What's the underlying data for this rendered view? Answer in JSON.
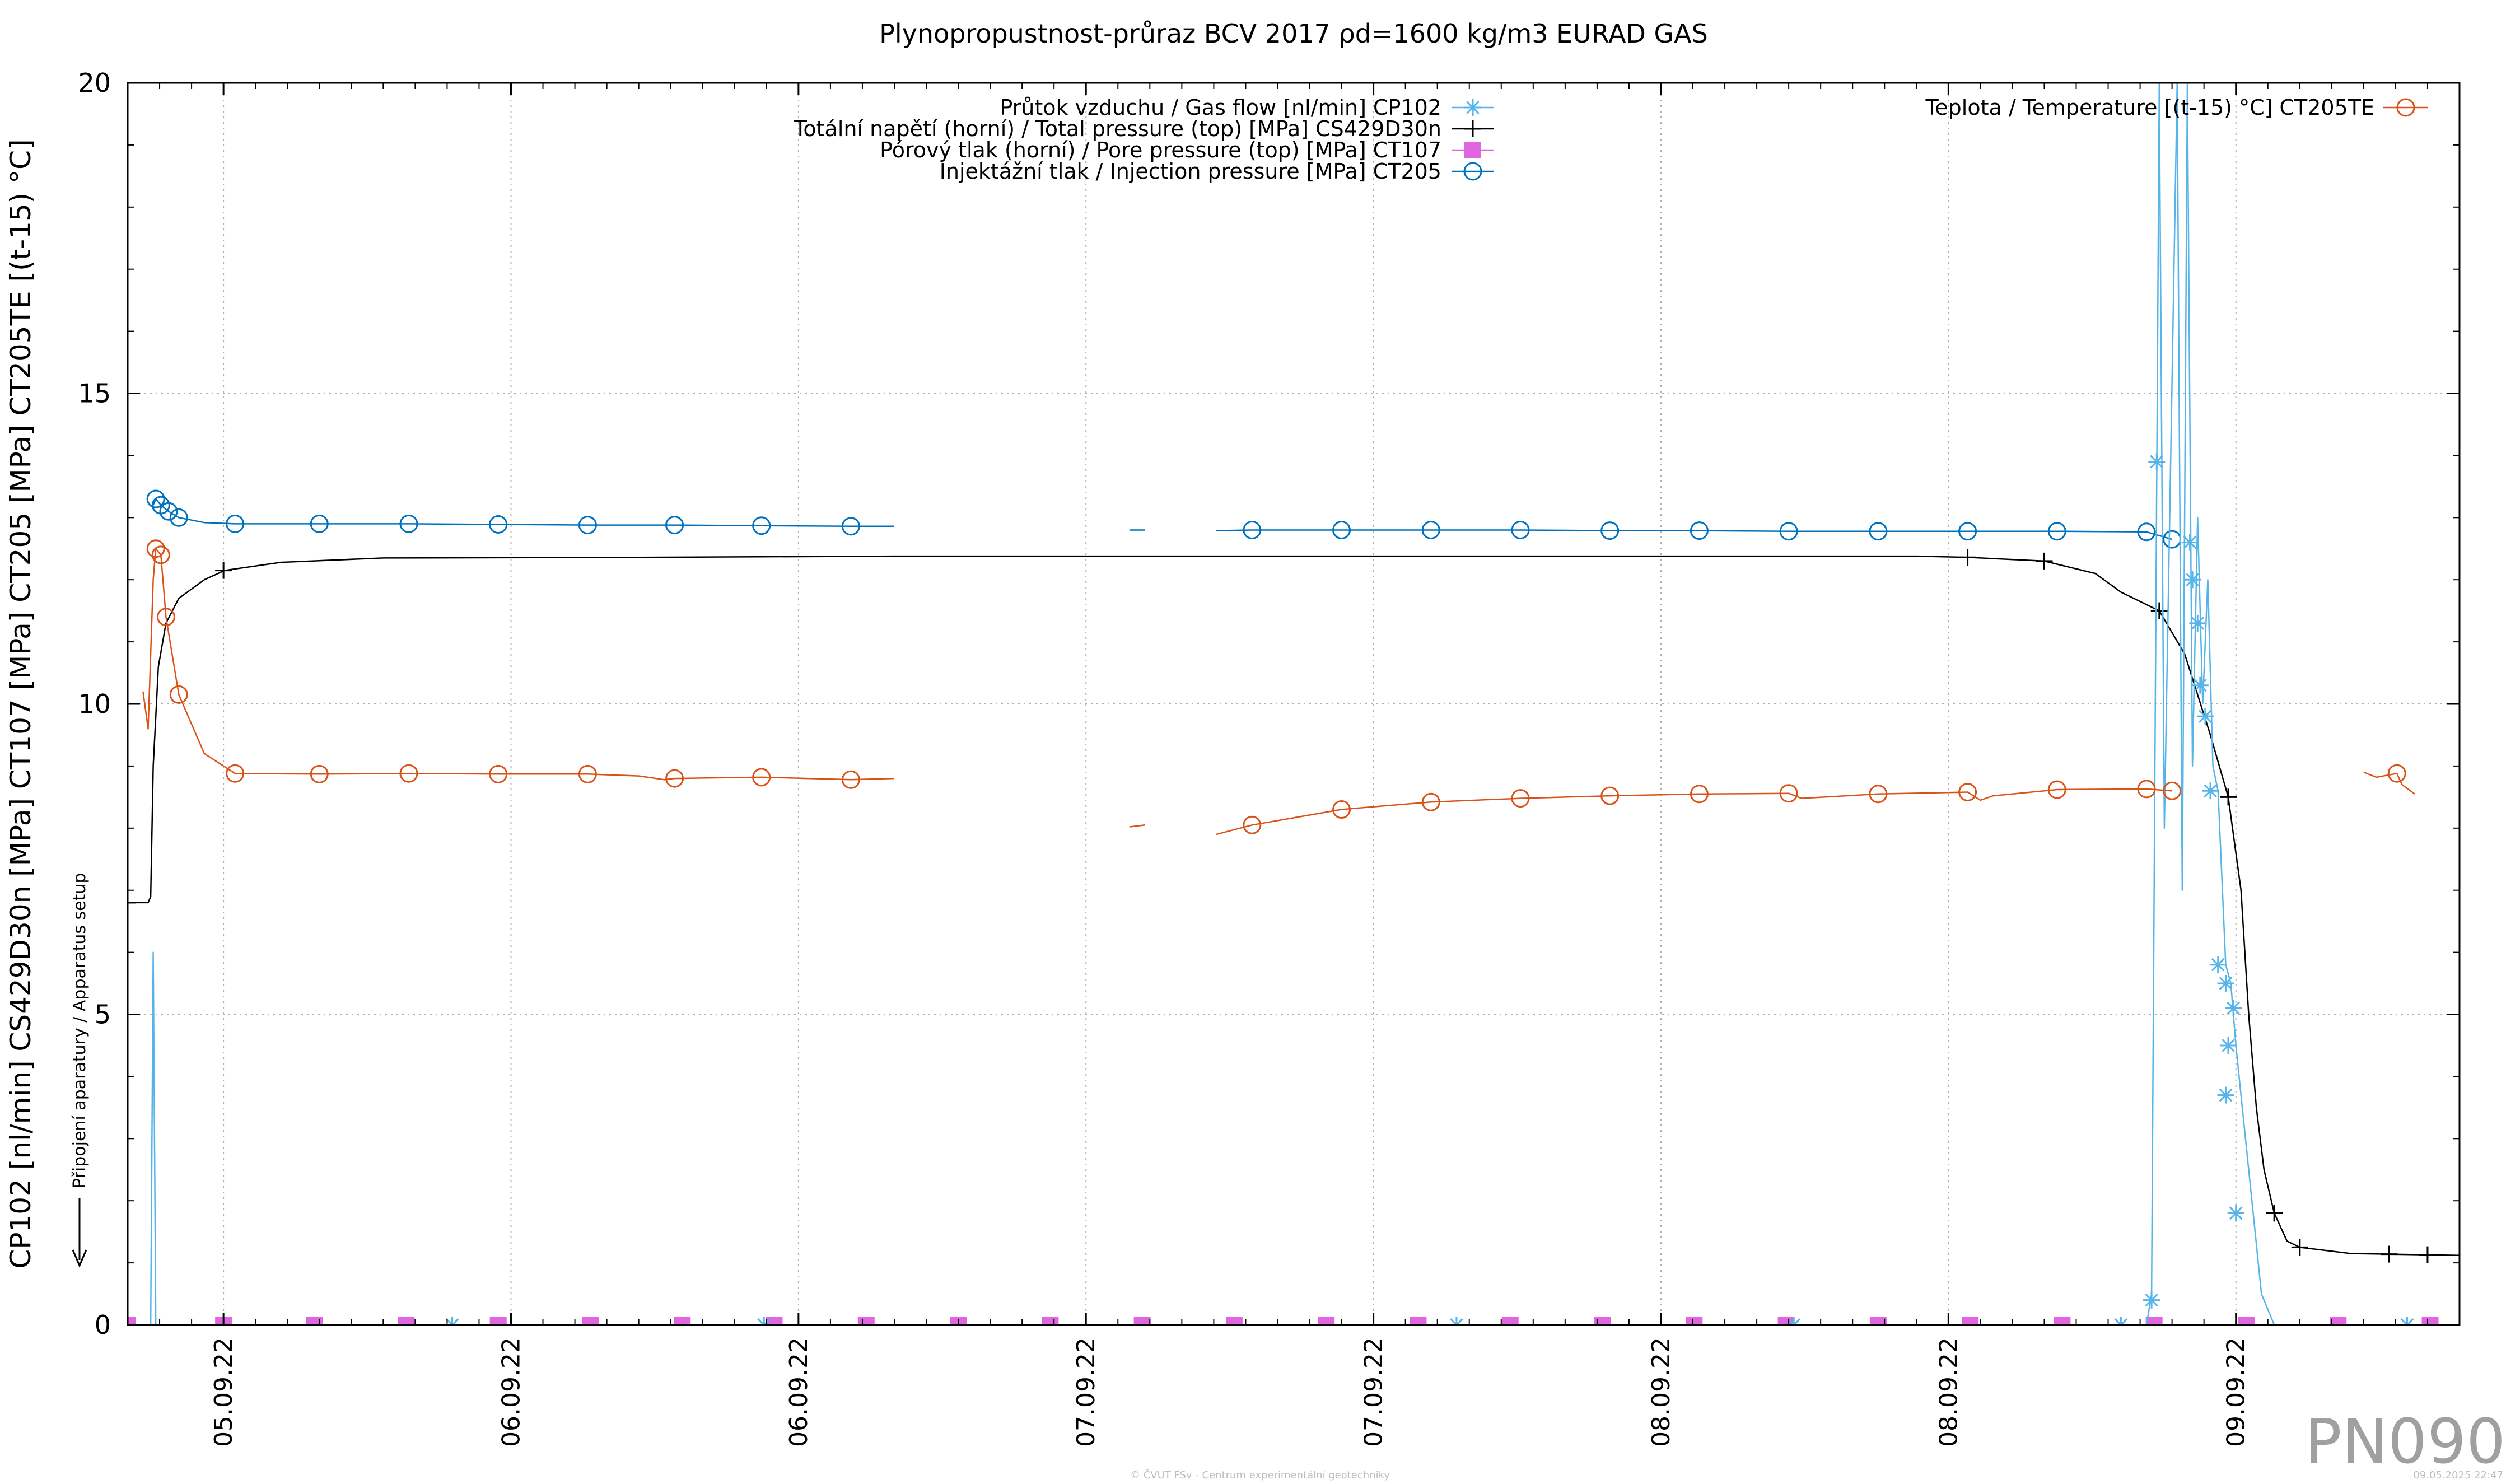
{
  "chart_data": {
    "type": "line",
    "title": "Plynopropustnost-průraz BCV 2017 ρd=1600 kg/m3 EURAD GAS",
    "ylabel": "CP102 [nl/min] CS429D30n [MPa] CT107 [MPa] CT205 [MPa] CT205TE [(t-15) °C]",
    "ylim": [
      0,
      20
    ],
    "y_ticks": [
      "0",
      "5",
      "10",
      "15",
      "20"
    ],
    "xlim": [
      0,
      9.125
    ],
    "x_unit": "days from 04.09.22 12:00",
    "x_ticks": [
      "05.09.22",
      "06.09.22",
      "06.09.22",
      "07.09.22",
      "07.09.22",
      "08.09.22",
      "08.09.22",
      "09.09.22"
    ],
    "x_tick_positions": [
      0.375,
      1.5,
      2.625,
      3.75,
      4.875,
      6.0,
      7.125,
      8.25
    ],
    "grid": true,
    "annotation": "Připojení aparatury / Apparatus setup",
    "watermark": "PN090",
    "footer_left": "© ČVUT FSv - Centrum experimentální geotechniky",
    "footer_right": "09.05.2025 22:47",
    "legend_left": [
      {
        "label": "Průtok vzduchu / Gas flow [nl/min] CP102",
        "color": "#56b4e9",
        "marker": "star"
      },
      {
        "label": "Totální napětí (horní) / Total pressure (top) [MPa] CS429D30n",
        "color": "#000000",
        "marker": "plus"
      },
      {
        "label": "Pórový tlak (horní) / Pore pressure (top) [MPa] CT107",
        "color": "#e066e0",
        "marker": "square"
      },
      {
        "label": "Injektážní tlak / Injection pressure [MPa] CT205",
        "color": "#0072bd",
        "marker": "circle"
      }
    ],
    "legend_right": [
      {
        "label": "Teplota / Temperature [(t-15) °C] CT205TE",
        "color": "#d95319",
        "marker": "circle"
      }
    ],
    "series": [
      {
        "name": "Injektážní tlak / Injection pressure [MPa] CT205",
        "color": "#0072bd",
        "marker": "circle",
        "segments": [
          [
            [
              0.1,
              13.2
            ],
            [
              0.11,
              13.3
            ],
            [
              0.13,
              13.2
            ],
            [
              0.16,
              13.1
            ],
            [
              0.2,
              13.0
            ],
            [
              0.3,
              12.92
            ],
            [
              0.42,
              12.9
            ],
            [
              0.75,
              12.9
            ],
            [
              1.1,
              12.9
            ],
            [
              1.45,
              12.89
            ],
            [
              1.8,
              12.88
            ],
            [
              2.14,
              12.88
            ],
            [
              2.48,
              12.87
            ],
            [
              2.83,
              12.86
            ],
            [
              3.0,
              12.86
            ]
          ],
          [
            [
              3.92,
              12.8
            ],
            [
              3.98,
              12.8
            ]
          ],
          [
            [
              4.26,
              12.79
            ],
            [
              4.4,
              12.8
            ],
            [
              4.75,
              12.8
            ],
            [
              5.1,
              12.8
            ],
            [
              5.45,
              12.8
            ],
            [
              5.8,
              12.79
            ],
            [
              6.15,
              12.79
            ],
            [
              6.5,
              12.78
            ],
            [
              6.85,
              12.78
            ],
            [
              7.2,
              12.78
            ],
            [
              7.55,
              12.78
            ],
            [
              7.9,
              12.77
            ],
            [
              8.0,
              12.65
            ]
          ]
        ],
        "markers": [
          [
            0.11,
            13.3
          ],
          [
            0.13,
            13.2
          ],
          [
            0.16,
            13.1
          ],
          [
            0.2,
            13.0
          ],
          [
            0.42,
            12.9
          ],
          [
            0.75,
            12.9
          ],
          [
            1.1,
            12.9
          ],
          [
            1.45,
            12.89
          ],
          [
            1.8,
            12.88
          ],
          [
            2.14,
            12.88
          ],
          [
            2.48,
            12.87
          ],
          [
            2.83,
            12.86
          ],
          [
            4.4,
            12.8
          ],
          [
            4.75,
            12.8
          ],
          [
            5.1,
            12.8
          ],
          [
            5.45,
            12.8
          ],
          [
            5.8,
            12.79
          ],
          [
            6.15,
            12.79
          ],
          [
            6.5,
            12.78
          ],
          [
            6.85,
            12.78
          ],
          [
            7.2,
            12.78
          ],
          [
            7.55,
            12.78
          ],
          [
            7.9,
            12.77
          ],
          [
            8.0,
            12.65
          ]
        ]
      },
      {
        "name": "Totální napětí (horní) / Total pressure (top) [MPa] CS429D30n",
        "color": "#000000",
        "marker": "plus",
        "segments": [
          [
            [
              0.0,
              6.8
            ],
            [
              0.08,
              6.8
            ],
            [
              0.09,
              6.9
            ],
            [
              0.1,
              9.0
            ],
            [
              0.12,
              10.6
            ],
            [
              0.15,
              11.3
            ],
            [
              0.2,
              11.7
            ],
            [
              0.3,
              12.0
            ],
            [
              0.38,
              12.15
            ],
            [
              0.6,
              12.28
            ],
            [
              1.0,
              12.35
            ],
            [
              2.0,
              12.36
            ],
            [
              3.0,
              12.38
            ],
            [
              4.0,
              12.38
            ],
            [
              5.0,
              12.38
            ],
            [
              6.0,
              12.38
            ],
            [
              7.0,
              12.38
            ],
            [
              7.2,
              12.36
            ],
            [
              7.5,
              12.3
            ],
            [
              7.7,
              12.1
            ],
            [
              7.8,
              11.8
            ],
            [
              7.95,
              11.5
            ],
            [
              8.05,
              10.8
            ],
            [
              8.15,
              9.5
            ],
            [
              8.22,
              8.5
            ],
            [
              8.27,
              7.0
            ],
            [
              8.3,
              5.0
            ],
            [
              8.33,
              3.5
            ],
            [
              8.36,
              2.5
            ],
            [
              8.4,
              1.8
            ],
            [
              8.45,
              1.35
            ],
            [
              8.5,
              1.25
            ],
            [
              8.6,
              1.2
            ],
            [
              8.7,
              1.15
            ],
            [
              9.0,
              1.13
            ],
            [
              9.125,
              1.12
            ]
          ]
        ],
        "markers": [
          [
            0.0,
            6.8
          ],
          [
            0.375,
            12.15
          ],
          [
            7.2,
            12.36
          ],
          [
            7.5,
            12.3
          ],
          [
            7.95,
            11.5
          ],
          [
            8.22,
            8.5
          ],
          [
            8.4,
            1.8
          ],
          [
            8.5,
            1.25
          ],
          [
            8.85,
            1.14
          ],
          [
            9.0,
            1.13
          ]
        ]
      },
      {
        "name": "Pórový tlak (horní) / Pore pressure (top) [MPa] CT107",
        "color": "#e066e0",
        "marker": "square",
        "segments": [
          [
            [
              0.0,
              0.0
            ],
            [
              9.125,
              0.0
            ]
          ]
        ],
        "markers": [
          [
            0.0,
            0.0
          ],
          [
            0.375,
            0.0
          ],
          [
            0.73,
            0.0
          ],
          [
            1.09,
            0.0
          ],
          [
            1.45,
            0.0
          ],
          [
            1.81,
            0.0
          ],
          [
            2.17,
            0.0
          ],
          [
            2.53,
            0.0
          ],
          [
            2.89,
            0.0
          ],
          [
            3.25,
            0.0
          ],
          [
            3.61,
            0.0
          ],
          [
            3.97,
            0.0
          ],
          [
            4.33,
            0.0
          ],
          [
            4.69,
            0.0
          ],
          [
            5.05,
            0.0
          ],
          [
            5.41,
            0.0
          ],
          [
            5.77,
            0.0
          ],
          [
            6.13,
            0.0
          ],
          [
            6.49,
            0.0
          ],
          [
            6.85,
            0.0
          ],
          [
            7.21,
            0.0
          ],
          [
            7.57,
            0.0
          ],
          [
            7.93,
            0.0
          ],
          [
            8.29,
            0.0
          ],
          [
            8.65,
            0.0
          ],
          [
            9.01,
            0.0
          ]
        ]
      },
      {
        "name": "Průtok vzduchu / Gas flow [nl/min] CP102",
        "color": "#56b4e9",
        "marker": "star",
        "segments": [
          [
            [
              0.0,
              0.0
            ],
            [
              0.09,
              0.0
            ],
            [
              0.1,
              6.0
            ],
            [
              0.11,
              0.0
            ],
            [
              7.9,
              0.0
            ],
            [
              7.92,
              0.5
            ],
            [
              7.95,
              20.0
            ],
            [
              7.97,
              8.0
            ],
            [
              8.02,
              20.0
            ],
            [
              8.04,
              7.0
            ],
            [
              8.06,
              20.0
            ],
            [
              8.08,
              9.0
            ],
            [
              8.1,
              13.0
            ],
            [
              8.12,
              10.0
            ],
            [
              8.14,
              12.0
            ],
            [
              8.16,
              9.0
            ],
            [
              8.18,
              8.6
            ],
            [
              8.21,
              5.8
            ],
            [
              8.23,
              5.5
            ],
            [
              8.25,
              4.5
            ],
            [
              8.27,
              3.7
            ],
            [
              8.3,
              2.5
            ],
            [
              8.32,
              1.7
            ],
            [
              8.35,
              0.5
            ],
            [
              8.4,
              0.0
            ],
            [
              9.125,
              0.0
            ]
          ]
        ],
        "markers": [
          [
            1.27,
            0.0
          ],
          [
            2.49,
            0.0
          ],
          [
            5.2,
            0.0
          ],
          [
            6.52,
            0.0
          ],
          [
            7.8,
            0.0
          ],
          [
            7.92,
            0.4
          ],
          [
            7.94,
            13.9
          ],
          [
            8.07,
            12.6
          ],
          [
            8.08,
            12.0
          ],
          [
            8.1,
            11.3
          ],
          [
            8.11,
            10.3
          ],
          [
            8.13,
            9.8
          ],
          [
            8.15,
            8.6
          ],
          [
            8.18,
            5.8
          ],
          [
            8.21,
            5.5
          ],
          [
            8.24,
            5.1
          ],
          [
            8.22,
            4.5
          ],
          [
            8.21,
            3.7
          ],
          [
            8.25,
            1.8
          ],
          [
            8.92,
            0.0
          ]
        ]
      },
      {
        "name": "Teplota / Temperature [(t-15) °C] CT205TE",
        "color": "#d95319",
        "marker": "circle",
        "segments": [
          [
            [
              0.06,
              10.2
            ],
            [
              0.08,
              9.6
            ],
            [
              0.1,
              12.0
            ],
            [
              0.11,
              12.5
            ],
            [
              0.13,
              12.4
            ],
            [
              0.15,
              11.4
            ],
            [
              0.2,
              10.15
            ],
            [
              0.3,
              9.2
            ],
            [
              0.42,
              8.88
            ],
            [
              0.75,
              8.87
            ],
            [
              1.1,
              8.88
            ],
            [
              1.45,
              8.87
            ],
            [
              1.8,
              8.87
            ],
            [
              2.0,
              8.84
            ],
            [
              2.1,
              8.78
            ],
            [
              2.14,
              8.8
            ],
            [
              2.48,
              8.82
            ],
            [
              2.83,
              8.78
            ],
            [
              3.0,
              8.8
            ]
          ],
          [
            [
              3.92,
              8.02
            ],
            [
              3.98,
              8.05
            ]
          ],
          [
            [
              4.26,
              7.9
            ],
            [
              4.4,
              8.05
            ],
            [
              4.75,
              8.3
            ],
            [
              5.1,
              8.42
            ],
            [
              5.45,
              8.48
            ],
            [
              5.8,
              8.52
            ],
            [
              6.15,
              8.55
            ],
            [
              6.5,
              8.56
            ],
            [
              6.55,
              8.48
            ],
            [
              6.85,
              8.55
            ],
            [
              7.2,
              8.58
            ],
            [
              7.25,
              8.45
            ],
            [
              7.3,
              8.52
            ],
            [
              7.55,
              8.62
            ],
            [
              7.9,
              8.63
            ],
            [
              8.0,
              8.6
            ]
          ],
          [
            [
              8.75,
              8.9
            ],
            [
              8.8,
              8.82
            ],
            [
              8.88,
              8.88
            ],
            [
              8.9,
              8.7
            ],
            [
              8.95,
              8.55
            ]
          ]
        ],
        "markers": [
          [
            0.11,
            12.5
          ],
          [
            0.13,
            12.4
          ],
          [
            0.15,
            11.4
          ],
          [
            0.2,
            10.15
          ],
          [
            0.42,
            8.88
          ],
          [
            0.75,
            8.87
          ],
          [
            1.1,
            8.88
          ],
          [
            1.45,
            8.87
          ],
          [
            1.8,
            8.87
          ],
          [
            2.14,
            8.8
          ],
          [
            2.48,
            8.82
          ],
          [
            2.83,
            8.78
          ],
          [
            4.4,
            8.05
          ],
          [
            4.75,
            8.3
          ],
          [
            5.1,
            8.42
          ],
          [
            5.45,
            8.48
          ],
          [
            5.8,
            8.52
          ],
          [
            6.15,
            8.55
          ],
          [
            6.5,
            8.56
          ],
          [
            6.85,
            8.55
          ],
          [
            7.2,
            8.58
          ],
          [
            7.55,
            8.62
          ],
          [
            7.9,
            8.63
          ],
          [
            8.0,
            8.6
          ],
          [
            8.88,
            8.88
          ]
        ]
      }
    ]
  }
}
